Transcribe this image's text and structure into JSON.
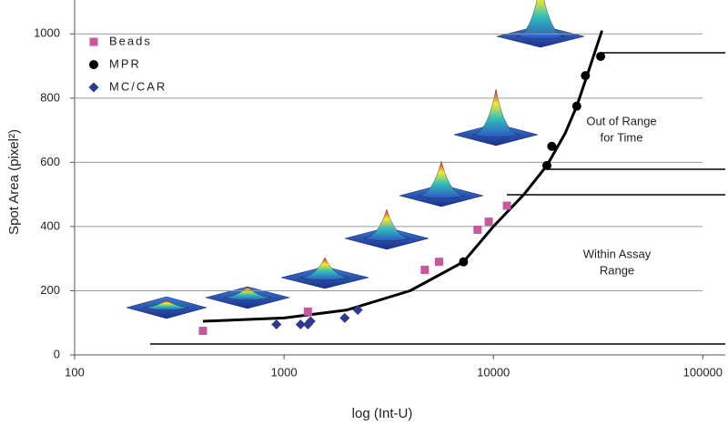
{
  "chart_data": {
    "type": "scatter",
    "x_label": "log (Int-U)",
    "y_label": "Spot Area (pixel²)",
    "xlim": [
      100,
      128000
    ],
    "xscale": "log",
    "xticks": [
      100,
      1000,
      10000,
      100000
    ],
    "ylim": [
      0,
      1100
    ],
    "yticks": [
      0,
      200,
      400,
      600,
      800,
      1000
    ],
    "grid": true,
    "legend": "upper left",
    "series": [
      {
        "name": "Beads",
        "color": "#c8579f",
        "marker": "square",
        "x": [
          410,
          1300,
          4700,
          5500,
          8400,
          9500,
          11600
        ],
        "values": [
          75,
          135,
          265,
          290,
          390,
          415,
          465
        ]
      },
      {
        "name": "MPR",
        "color": "#000000",
        "marker": "circle",
        "x": [
          7200,
          18000,
          19000,
          25000,
          27500,
          32500
        ],
        "values": [
          290,
          590,
          650,
          775,
          870,
          930
        ]
      },
      {
        "name": "MC/CAR",
        "color": "#2e3a8c",
        "marker": "diamond",
        "x": [
          920,
          1200,
          1300,
          1340,
          1950,
          2250
        ],
        "values": [
          95,
          95,
          95,
          105,
          115,
          140
        ]
      }
    ],
    "fit_curve": {
      "color": "#000000",
      "x": [
        410,
        1000,
        2000,
        4000,
        7200,
        10000,
        14000,
        18000,
        22000,
        25000,
        28000,
        33000
      ],
      "values": [
        105,
        115,
        140,
        200,
        290,
        400,
        500,
        590,
        690,
        775,
        870,
        1010
      ]
    },
    "annotations": [
      [
        "Out of Range",
        "for Time"
      ],
      [
        "Within Assay",
        "Range"
      ]
    ]
  }
}
